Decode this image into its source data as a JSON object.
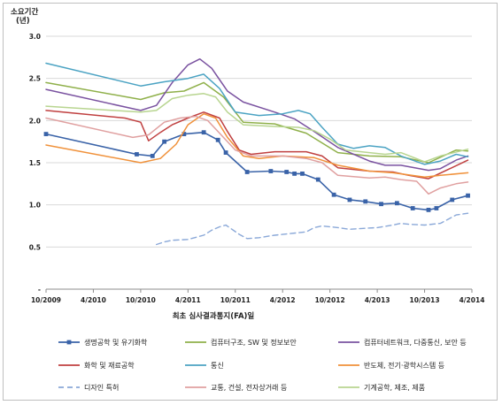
{
  "chart_data": {
    "type": "line",
    "ylabel": "소요기간\n(년)",
    "xlabel": "최초 심사결과통지(FA)일",
    "ylim": [
      0,
      3.0
    ],
    "yticks": [
      "3.0",
      "2.5",
      "2.0",
      "1.5",
      "1.0",
      "0.5",
      "-"
    ],
    "ytick_values": [
      3.0,
      2.5,
      2.0,
      1.5,
      1.0,
      0.5,
      0
    ],
    "xticks": [
      "10/2009",
      "4/2010",
      "10/2010",
      "4/2011",
      "10/2011",
      "4/2012",
      "10/2012",
      "4/2013",
      "10/2013",
      "4/2014"
    ],
    "xtick_values": [
      0,
      6,
      12,
      18,
      24,
      30,
      36,
      42,
      48,
      54
    ],
    "x_unit": "months since 10/2009",
    "grid": "horizontal",
    "legend_position": "bottom",
    "series": [
      {
        "name": "생명공학 및 유기화학",
        "color": "#3a63a8",
        "dash": "solid",
        "marker": "square",
        "width": 1.6,
        "points": [
          [
            0,
            1.84
          ],
          [
            11.5,
            1.6
          ],
          [
            13.5,
            1.58
          ],
          [
            15,
            1.75
          ],
          [
            17.5,
            1.84
          ],
          [
            20,
            1.86
          ],
          [
            21.8,
            1.77
          ],
          [
            22.8,
            1.62
          ],
          [
            25.5,
            1.39
          ],
          [
            28.5,
            1.4
          ],
          [
            30.5,
            1.39
          ],
          [
            31.5,
            1.37
          ],
          [
            32.5,
            1.37
          ],
          [
            34.5,
            1.3
          ],
          [
            36.5,
            1.12
          ],
          [
            38.5,
            1.06
          ],
          [
            40.5,
            1.04
          ],
          [
            42.5,
            1.01
          ],
          [
            44.5,
            1.02
          ],
          [
            46.5,
            0.96
          ],
          [
            48.5,
            0.94
          ],
          [
            49.5,
            0.96
          ],
          [
            51.5,
            1.06
          ],
          [
            53.5,
            1.11
          ]
        ]
      },
      {
        "name": "컴퓨터구조, SW 및 정보보안",
        "color": "#8fb04a",
        "dash": "solid",
        "marker": "none",
        "width": 1.5,
        "points": [
          [
            0,
            2.45
          ],
          [
            12,
            2.25
          ],
          [
            15,
            2.33
          ],
          [
            17.5,
            2.35
          ],
          [
            20,
            2.45
          ],
          [
            22.5,
            2.28
          ],
          [
            25,
            1.98
          ],
          [
            29,
            1.96
          ],
          [
            33,
            1.85
          ],
          [
            37,
            1.62
          ],
          [
            41,
            1.58
          ],
          [
            45,
            1.57
          ],
          [
            48.5,
            1.5
          ],
          [
            52,
            1.65
          ],
          [
            53.5,
            1.64
          ]
        ]
      },
      {
        "name": "컴퓨터네트워크, 다중통신, 보안 등",
        "color": "#7a52a0",
        "dash": "solid",
        "marker": "none",
        "width": 1.5,
        "points": [
          [
            0,
            2.37
          ],
          [
            12,
            2.12
          ],
          [
            14,
            2.18
          ],
          [
            16,
            2.45
          ],
          [
            18,
            2.66
          ],
          [
            19.5,
            2.73
          ],
          [
            21,
            2.62
          ],
          [
            23,
            2.35
          ],
          [
            25,
            2.22
          ],
          [
            29,
            2.1
          ],
          [
            31.5,
            2.02
          ],
          [
            34,
            1.87
          ],
          [
            37,
            1.68
          ],
          [
            41,
            1.52
          ],
          [
            43,
            1.47
          ],
          [
            45,
            1.47
          ],
          [
            48.5,
            1.41
          ],
          [
            50,
            1.43
          ],
          [
            52,
            1.53
          ],
          [
            53.5,
            1.58
          ]
        ]
      },
      {
        "name": "화학 및 재료공학",
        "color": "#c04040",
        "dash": "solid",
        "marker": "none",
        "width": 1.5,
        "points": [
          [
            0,
            2.12
          ],
          [
            10,
            2.03
          ],
          [
            12,
            1.98
          ],
          [
            13,
            1.76
          ],
          [
            14.5,
            1.86
          ],
          [
            16,
            1.95
          ],
          [
            18,
            2.03
          ],
          [
            20,
            2.1
          ],
          [
            22,
            2.03
          ],
          [
            23,
            1.87
          ],
          [
            24.5,
            1.65
          ],
          [
            26,
            1.6
          ],
          [
            29,
            1.63
          ],
          [
            33,
            1.63
          ],
          [
            35,
            1.58
          ],
          [
            37,
            1.44
          ],
          [
            41,
            1.4
          ],
          [
            44,
            1.39
          ],
          [
            46,
            1.35
          ],
          [
            48.5,
            1.31
          ],
          [
            51,
            1.42
          ],
          [
            53.5,
            1.53
          ]
        ]
      },
      {
        "name": "통신",
        "color": "#4ba3c3",
        "dash": "solid",
        "marker": "none",
        "width": 1.5,
        "points": [
          [
            0,
            2.68
          ],
          [
            12,
            2.41
          ],
          [
            15,
            2.46
          ],
          [
            18,
            2.5
          ],
          [
            20,
            2.55
          ],
          [
            22,
            2.38
          ],
          [
            24,
            2.1
          ],
          [
            27,
            2.06
          ],
          [
            30,
            2.08
          ],
          [
            32,
            2.12
          ],
          [
            33.5,
            2.08
          ],
          [
            35,
            1.92
          ],
          [
            37,
            1.72
          ],
          [
            39,
            1.67
          ],
          [
            41,
            1.7
          ],
          [
            43,
            1.68
          ],
          [
            45,
            1.58
          ],
          [
            48,
            1.48
          ],
          [
            50,
            1.52
          ],
          [
            52,
            1.6
          ],
          [
            53.5,
            1.57
          ]
        ]
      },
      {
        "name": "반도체, 전기·광학시스템 등",
        "color": "#f0913a",
        "dash": "solid",
        "marker": "none",
        "width": 1.5,
        "points": [
          [
            0,
            1.71
          ],
          [
            12,
            1.5
          ],
          [
            14.5,
            1.55
          ],
          [
            16.5,
            1.72
          ],
          [
            18,
            1.95
          ],
          [
            20,
            2.08
          ],
          [
            21.5,
            2.03
          ],
          [
            23,
            1.8
          ],
          [
            25,
            1.58
          ],
          [
            27,
            1.55
          ],
          [
            30,
            1.58
          ],
          [
            34,
            1.56
          ],
          [
            37,
            1.47
          ],
          [
            41,
            1.4
          ],
          [
            44,
            1.38
          ],
          [
            48,
            1.33
          ],
          [
            50,
            1.35
          ],
          [
            53.5,
            1.38
          ]
        ]
      },
      {
        "name": "디자인 특허",
        "color": "#8aa8d8",
        "dash": "dashed",
        "marker": "none",
        "width": 1.4,
        "points": [
          [
            14,
            0.53
          ],
          [
            15,
            0.56
          ],
          [
            16,
            0.58
          ],
          [
            18,
            0.59
          ],
          [
            20,
            0.64
          ],
          [
            21,
            0.7
          ],
          [
            22,
            0.74
          ],
          [
            22.8,
            0.76
          ],
          [
            24.5,
            0.65
          ],
          [
            25.5,
            0.6
          ],
          [
            27,
            0.61
          ],
          [
            29,
            0.64
          ],
          [
            31,
            0.66
          ],
          [
            33,
            0.68
          ],
          [
            34,
            0.73
          ],
          [
            35,
            0.75
          ],
          [
            37,
            0.73
          ],
          [
            38.5,
            0.71
          ],
          [
            40,
            0.72
          ],
          [
            42,
            0.73
          ],
          [
            44,
            0.76
          ],
          [
            45,
            0.78
          ],
          [
            46,
            0.77
          ],
          [
            48,
            0.76
          ],
          [
            50,
            0.78
          ],
          [
            52,
            0.88
          ],
          [
            53.5,
            0.9
          ]
        ]
      },
      {
        "name": "교통, 건설, 전자상거래 등",
        "color": "#e0a0a0",
        "dash": "solid",
        "marker": "none",
        "width": 1.5,
        "points": [
          [
            0,
            2.03
          ],
          [
            11,
            1.8
          ],
          [
            13,
            1.83
          ],
          [
            15,
            1.98
          ],
          [
            17,
            2.03
          ],
          [
            19,
            2.05
          ],
          [
            20.5,
            2.0
          ],
          [
            22,
            1.85
          ],
          [
            24,
            1.65
          ],
          [
            26,
            1.58
          ],
          [
            30,
            1.58
          ],
          [
            33,
            1.55
          ],
          [
            35,
            1.5
          ],
          [
            37,
            1.35
          ],
          [
            41,
            1.32
          ],
          [
            43,
            1.33
          ],
          [
            45,
            1.3
          ],
          [
            47,
            1.28
          ],
          [
            48.5,
            1.13
          ],
          [
            50,
            1.2
          ],
          [
            52,
            1.25
          ],
          [
            53.5,
            1.27
          ]
        ]
      },
      {
        "name": "기계공학, 제조, 제품",
        "color": "#b8d590",
        "dash": "solid",
        "marker": "none",
        "width": 1.5,
        "points": [
          [
            0,
            2.17
          ],
          [
            12,
            2.1
          ],
          [
            14,
            2.12
          ],
          [
            16,
            2.26
          ],
          [
            18,
            2.3
          ],
          [
            20,
            2.32
          ],
          [
            21.5,
            2.28
          ],
          [
            23,
            2.1
          ],
          [
            25,
            1.95
          ],
          [
            29,
            1.93
          ],
          [
            32,
            1.92
          ],
          [
            34,
            1.88
          ],
          [
            36,
            1.78
          ],
          [
            38,
            1.65
          ],
          [
            41,
            1.62
          ],
          [
            43,
            1.6
          ],
          [
            45,
            1.62
          ],
          [
            48,
            1.51
          ],
          [
            50,
            1.58
          ],
          [
            53.5,
            1.66
          ]
        ]
      }
    ]
  }
}
